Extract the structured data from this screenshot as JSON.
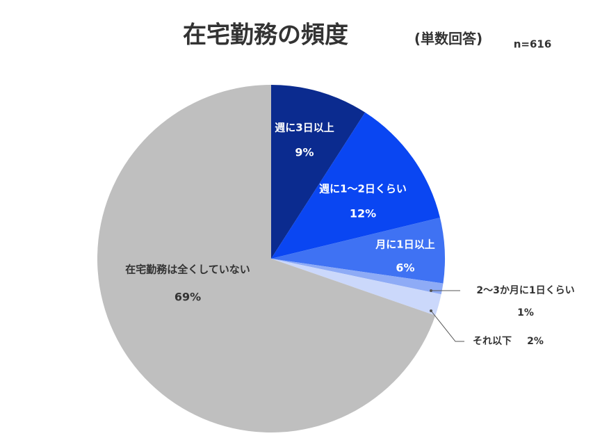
{
  "chart_data": {
    "type": "pie",
    "title": "在宅勤務の頻度",
    "subtitle": "(単数回答)",
    "note": "n=616",
    "categories": [
      "週に3日以上",
      "週に1～2日くらい",
      "月に1日以上",
      "2～3か月に1日くらい",
      "それ以下",
      "在宅勤務は全くしていない"
    ],
    "values": [
      9,
      12,
      6,
      1,
      2,
      69
    ],
    "value_labels": [
      "9%",
      "12%",
      "6%",
      "1%",
      "2%",
      "69%"
    ],
    "colors": [
      "#0b2b8f",
      "#0a46f2",
      "#3f72f3",
      "#8eabf6",
      "#cbd8fb",
      "#bfbfbf"
    ]
  }
}
